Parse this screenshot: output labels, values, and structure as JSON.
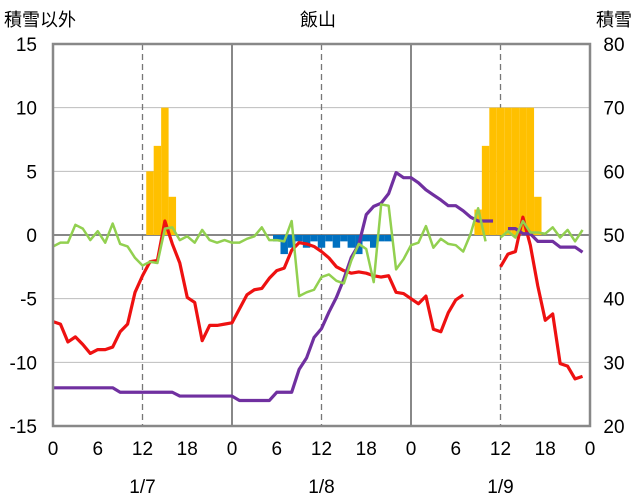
{
  "chart_data": {
    "type": "line",
    "title": "飯山",
    "ylabel_left": "積雪以外",
    "ylabel_right": "積雪",
    "ylim_left": [
      -15,
      15
    ],
    "yticks_left": [
      "15",
      "10",
      "5",
      "0",
      "-5",
      "-10",
      "-15"
    ],
    "ylim_right": [
      20,
      80
    ],
    "yticks_right": [
      "80",
      "70",
      "60",
      "50",
      "40",
      "30",
      "20"
    ],
    "x_hour_ticks": [
      "0",
      "6",
      "12",
      "18",
      "0",
      "6",
      "12",
      "18",
      "0",
      "6",
      "12",
      "18",
      "0"
    ],
    "x_date_labels": [
      "1/7",
      "1/8",
      "1/9"
    ],
    "x_unit": "hours from 1/7 00:00",
    "grid": "dashed vertical lines at 12h, solid at day boundaries",
    "colors": {
      "temperature": "#ee1111",
      "snow_depth": "#7030a0",
      "sunshine": "#92d050",
      "snowfall_bar": "#ffc000",
      "negative_bar": "#0070c0"
    },
    "series": [
      {
        "axis": "left",
        "kind": "line",
        "color": "#ee1111",
        "x": [
          0,
          1,
          2,
          3,
          4,
          5,
          6,
          7,
          8,
          9,
          10,
          11,
          12,
          13,
          14,
          15,
          16,
          17,
          18,
          19,
          20,
          21,
          22,
          23,
          24,
          25,
          26,
          27,
          28,
          29,
          30,
          31,
          32,
          33,
          34,
          35,
          36,
          37,
          38,
          39,
          40,
          41,
          42,
          43,
          44,
          45,
          46,
          47,
          48,
          49,
          50,
          51,
          52,
          53,
          54,
          55,
          56,
          57,
          58,
          59,
          60,
          61,
          62,
          63,
          64,
          65,
          66,
          67,
          68,
          69,
          70,
          71
        ],
        "values": [
          -6.8,
          -7,
          -8.4,
          -8,
          -8.6,
          -9.3,
          -9,
          -9,
          -8.8,
          -7.6,
          -7,
          -4.5,
          -3.2,
          -2.1,
          -2,
          1.1,
          -0.7,
          -2.2,
          -4.9,
          -5.3,
          -8.3,
          -7.1,
          -7.1,
          -7,
          -6.9,
          -5.8,
          -4.7,
          -4.3,
          -4.2,
          -3.4,
          -2.8,
          -2.6,
          -1.2,
          -0.6,
          -0.7,
          -0.9,
          -1.3,
          -1.8,
          -2.5,
          -2.8,
          -3,
          -2.9,
          -3,
          -3.2,
          -3.3,
          -3.2,
          -4.5,
          -4.6,
          -5,
          -5.4,
          -4.8,
          -7.4,
          -7.6,
          -6.1,
          -5.1,
          -4.7,
          null,
          null,
          null,
          null,
          -2.5,
          -1.5,
          -1.3,
          1.4,
          -0.8,
          -4,
          -6.7,
          -6.2,
          -10.1,
          -10.3,
          -11.3,
          -11.1
        ]
      },
      {
        "axis": "right",
        "kind": "line",
        "color": "#7030a0",
        "x": [
          0,
          1,
          2,
          3,
          4,
          5,
          6,
          7,
          8,
          9,
          10,
          11,
          12,
          13,
          14,
          15,
          16,
          17,
          18,
          19,
          20,
          21,
          22,
          23,
          24,
          25,
          26,
          27,
          28,
          29,
          30,
          31,
          32,
          33,
          34,
          35,
          36,
          37,
          38,
          39,
          40,
          41,
          42,
          43,
          44,
          45,
          46,
          47,
          48,
          49,
          50,
          51,
          52,
          53,
          54,
          55,
          56,
          57,
          58,
          59,
          60,
          61,
          62,
          63,
          64,
          65,
          66,
          67,
          68,
          69,
          70,
          71
        ],
        "values": [
          26,
          26,
          26,
          26,
          26,
          26,
          26,
          26,
          26,
          25.3,
          25.3,
          25.3,
          25.3,
          25.3,
          25.3,
          25.3,
          25.3,
          24.7,
          24.7,
          24.7,
          24.7,
          24.7,
          24.7,
          24.7,
          24.7,
          24,
          24,
          24,
          24,
          24,
          25.3,
          25.3,
          25.3,
          28.9,
          30.7,
          33.9,
          35.3,
          37.9,
          40.2,
          43.1,
          46.5,
          48.5,
          53.2,
          54.5,
          55,
          56.5,
          59.8,
          59,
          59,
          58.2,
          57.1,
          56.3,
          55.5,
          54.6,
          54.6,
          53.8,
          52.8,
          52.2,
          52.2,
          52.2,
          null,
          51,
          51,
          50.2,
          50.2,
          49,
          49,
          49,
          48.1,
          48.1,
          48.1,
          47.3
        ]
      },
      {
        "axis": "left",
        "kind": "line",
        "color": "#92d050",
        "x": [
          0,
          1,
          2,
          3,
          4,
          5,
          6,
          7,
          8,
          9,
          10,
          11,
          12,
          13,
          14,
          15,
          16,
          17,
          18,
          19,
          20,
          21,
          22,
          23,
          24,
          25,
          26,
          27,
          28,
          29,
          30,
          31,
          32,
          33,
          34,
          35,
          36,
          37,
          38,
          39,
          40,
          41,
          42,
          43,
          44,
          45,
          46,
          47,
          48,
          49,
          50,
          51,
          52,
          53,
          54,
          55,
          56,
          57,
          58,
          59,
          60,
          61,
          62,
          63,
          64,
          65,
          66,
          67,
          68,
          69,
          70,
          71
        ],
        "values": [
          -0.9,
          -0.6,
          -0.6,
          0.8,
          0.5,
          -0.4,
          0.3,
          -0.6,
          0.9,
          -0.7,
          -0.9,
          -1.8,
          -2.4,
          -2.1,
          -2.2,
          0.5,
          0.6,
          -0.4,
          -0.1,
          -0.6,
          0.4,
          -0.4,
          -0.6,
          -0.4,
          -0.6,
          -0.6,
          -0.3,
          -0.1,
          0.6,
          -0.4,
          -0.4,
          -0.5,
          1.1,
          -4.8,
          -4.5,
          -4.3,
          -3.3,
          -3.1,
          -3.6,
          -3.8,
          -2,
          -0.7,
          -1.1,
          -3.7,
          2.4,
          2.3,
          -2.7,
          -1.9,
          -0.8,
          -0.6,
          0.7,
          -1,
          -0.3,
          -0.7,
          -0.8,
          -1.3,
          0.1,
          2.1,
          -0.5,
          null,
          -0.2,
          0.3,
          -0.2,
          1.1,
          0.2,
          0.2,
          0.1,
          0.6,
          -0.2,
          0.4,
          -0.5,
          0.4
        ]
      },
      {
        "axis": "left",
        "kind": "bar",
        "color": "#ffc000",
        "x": [
          13,
          14,
          15,
          16,
          57,
          58,
          59,
          60,
          61,
          62,
          63,
          64,
          65
        ],
        "values": [
          5,
          7,
          10,
          3,
          2,
          7,
          10,
          10,
          10,
          10,
          10,
          10,
          3
        ]
      },
      {
        "axis": "left",
        "kind": "bar",
        "color": "#0070c0",
        "x": [
          30,
          31,
          32,
          33,
          34,
          35,
          36,
          37,
          38,
          39,
          40,
          41,
          42,
          43,
          44,
          45
        ],
        "values": [
          -0.5,
          -1.5,
          -1,
          -0.5,
          -1,
          -0.5,
          -1,
          -0.5,
          -1,
          -0.5,
          -1,
          -1.5,
          -0.5,
          -1,
          -0.5,
          -0.5
        ]
      }
    ]
  }
}
